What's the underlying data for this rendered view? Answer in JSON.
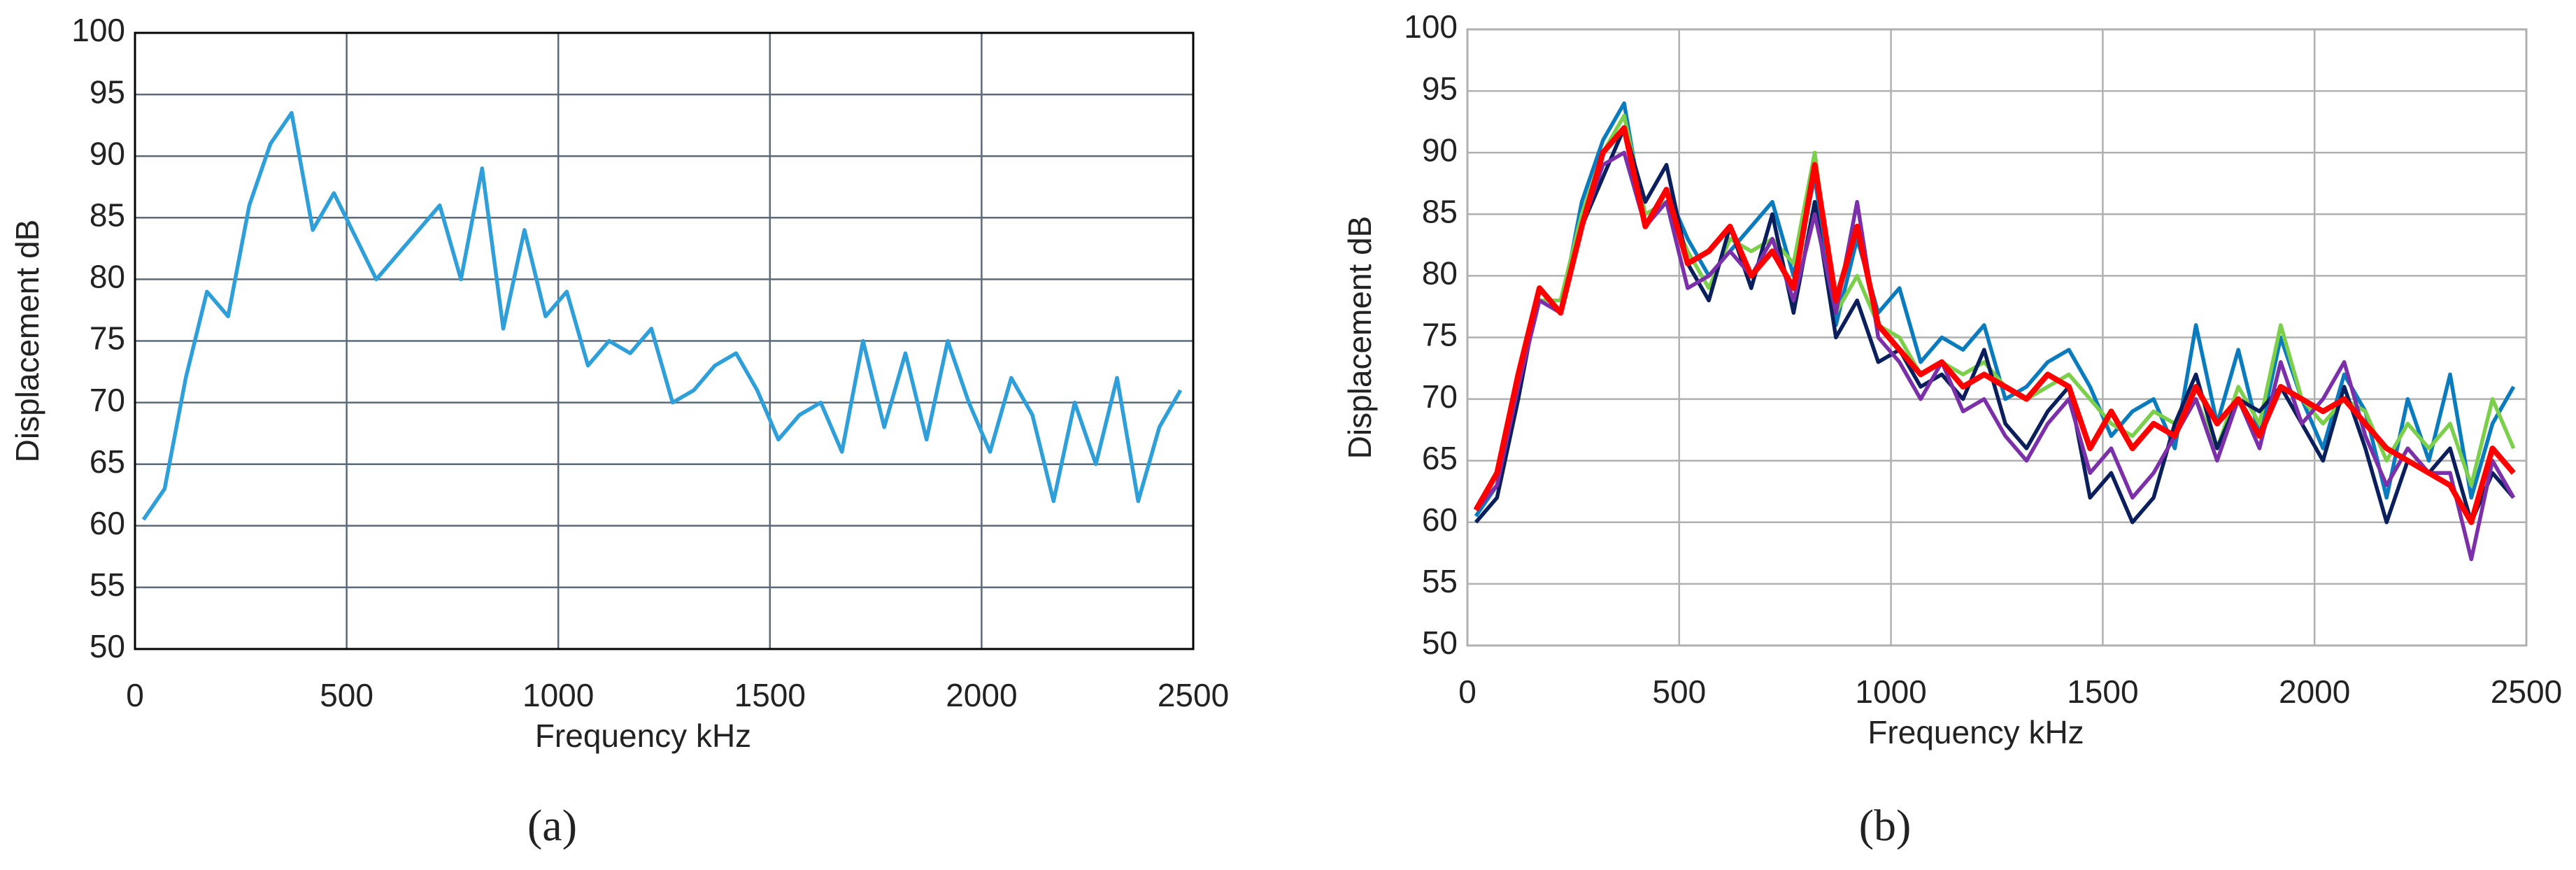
{
  "chart_data": [
    {
      "type": "line",
      "caption": "(a)",
      "xlabel": "Frequency  kHz",
      "ylabel": "Displacement  dB",
      "xlim": [
        0,
        2500
      ],
      "xticks": [
        0,
        500,
        1000,
        1500,
        2000,
        2500
      ],
      "ylim": [
        50,
        100
      ],
      "yticks": [
        50,
        55,
        60,
        65,
        70,
        75,
        80,
        85,
        90,
        95,
        100
      ],
      "grid": true,
      "x": [
        20,
        70,
        120,
        170,
        220,
        270,
        320,
        370,
        420,
        470,
        520,
        570,
        620,
        670,
        720,
        770,
        820,
        870,
        920,
        970,
        1020,
        1070,
        1120,
        1170,
        1220,
        1270,
        1320,
        1370,
        1420,
        1470,
        1520,
        1570,
        1620,
        1670,
        1720,
        1770,
        1820,
        1870,
        1920,
        1970,
        2020,
        2070,
        2120,
        2170,
        2220,
        2270,
        2320,
        2370,
        2420,
        2470
      ],
      "series": [
        {
          "color": "#2e9fd8",
          "values": [
            60.5,
            63,
            72,
            79,
            77,
            86,
            91,
            93.5,
            84,
            87,
            83.5,
            80,
            82,
            84,
            86,
            80,
            89,
            76,
            84,
            77,
            79,
            73,
            75,
            74,
            76,
            70,
            71,
            73,
            74,
            71,
            67,
            69,
            70,
            66,
            75,
            68,
            74,
            67,
            75,
            70,
            66,
            72,
            69,
            62,
            70,
            65,
            72,
            62,
            68,
            71
          ]
        }
      ]
    },
    {
      "type": "line",
      "caption": "(b)",
      "xlabel": "Frequency  kHz",
      "ylabel": "Displacement  dB",
      "xlim": [
        0,
        2500
      ],
      "xticks": [
        0,
        500,
        1000,
        1500,
        2000,
        2500
      ],
      "ylim": [
        50,
        100
      ],
      "yticks": [
        50,
        55,
        60,
        65,
        70,
        75,
        80,
        85,
        90,
        95,
        100
      ],
      "grid": true,
      "x": [
        20,
        70,
        120,
        170,
        220,
        270,
        320,
        370,
        420,
        470,
        520,
        570,
        620,
        670,
        720,
        770,
        820,
        870,
        920,
        970,
        1020,
        1070,
        1120,
        1170,
        1220,
        1270,
        1320,
        1370,
        1420,
        1470,
        1520,
        1570,
        1620,
        1670,
        1720,
        1770,
        1820,
        1870,
        1920,
        1970,
        2020,
        2070,
        2120,
        2170,
        2220,
        2270,
        2320,
        2370,
        2420,
        2470
      ],
      "series": [
        {
          "color": "#0a7bbd",
          "values": [
            60.5,
            63,
            72,
            79,
            77,
            86,
            91,
            94,
            84,
            87,
            83,
            80,
            82,
            84,
            86,
            80,
            88,
            76,
            83,
            77,
            79,
            73,
            75,
            74,
            76,
            70,
            71,
            73,
            74,
            71,
            67,
            69,
            70,
            66,
            76,
            68,
            74,
            67,
            75,
            70,
            66,
            72,
            69,
            62,
            70,
            65,
            72,
            62,
            68,
            71
          ]
        },
        {
          "color": "#7ccf4a",
          "values": [
            61,
            64,
            71,
            78,
            78,
            85,
            90,
            93,
            85,
            86,
            82,
            79,
            83,
            82,
            83,
            81,
            90,
            77,
            80,
            76,
            75,
            72,
            73,
            72,
            73,
            71,
            70,
            71,
            72,
            70,
            68,
            67,
            69,
            68,
            70,
            66,
            71,
            68,
            76,
            70,
            68,
            70,
            69,
            65,
            68,
            66,
            68,
            63,
            70,
            66
          ]
        },
        {
          "color": "#0a1f5c",
          "values": [
            60,
            62,
            70,
            79,
            77,
            84,
            88,
            92,
            86,
            89,
            81,
            78,
            84,
            79,
            85,
            77,
            86,
            75,
            78,
            73,
            74,
            71,
            72,
            70,
            74,
            68,
            66,
            69,
            71,
            62,
            64,
            60,
            62,
            68,
            72,
            66,
            70,
            69,
            71,
            68,
            65,
            71,
            66,
            60,
            65,
            64,
            66,
            60,
            64,
            62
          ]
        },
        {
          "color": "#7b2fa8",
          "values": [
            61,
            63,
            71,
            78,
            77,
            84,
            89,
            90,
            84,
            86,
            79,
            80,
            82,
            80,
            83,
            78,
            85,
            77,
            86,
            75,
            73,
            70,
            73,
            69,
            70,
            67,
            65,
            68,
            70,
            64,
            66,
            62,
            64,
            67,
            70,
            65,
            70,
            66,
            73,
            68,
            70,
            73,
            67,
            63,
            66,
            64,
            64,
            57,
            65,
            62
          ]
        },
        {
          "color": "#ff0000",
          "values": [
            61,
            64,
            72,
            79,
            77,
            84,
            90,
            92,
            84,
            87,
            81,
            82,
            84,
            80,
            82,
            79,
            89,
            78,
            84,
            76,
            74,
            72,
            73,
            71,
            72,
            71,
            70,
            72,
            71,
            66,
            69,
            66,
            68,
            67,
            71,
            68,
            70,
            67,
            71,
            70,
            69,
            70,
            68,
            66,
            65,
            64,
            63,
            60,
            66,
            64
          ]
        }
      ]
    }
  ]
}
